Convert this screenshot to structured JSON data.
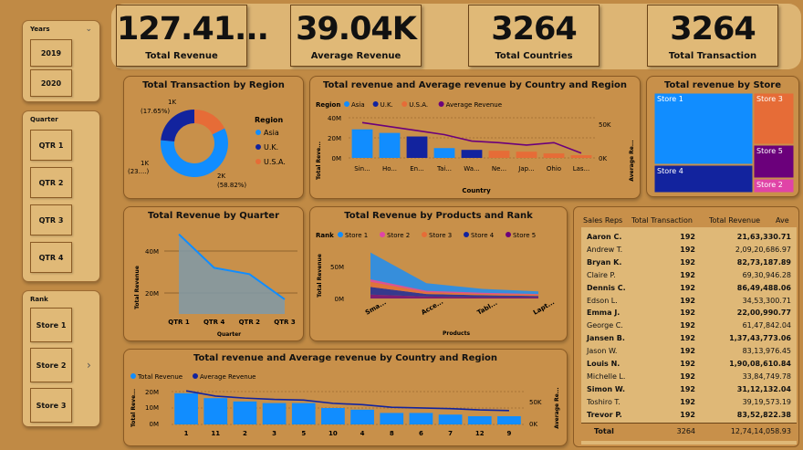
{
  "slicers": {
    "years": {
      "title": "Years",
      "items": [
        "2019",
        "2020"
      ]
    },
    "quarter": {
      "title": "Quarter",
      "items": [
        "QTR 1",
        "QTR 2",
        "QTR 3",
        "QTR 4"
      ]
    },
    "rank": {
      "title": "Rank",
      "items": [
        "Store 1",
        "Store 2",
        "Store 3"
      ]
    }
  },
  "kpis": [
    {
      "value": "127.41...",
      "label": "Total Revenue"
    },
    {
      "value": "39.04K",
      "label": "Average Revenue"
    },
    {
      "value": "3264",
      "label": "Total Countries"
    },
    {
      "value": "3264",
      "label": "Total Transaction"
    }
  ],
  "donut": {
    "title": "Total Transaction by Region",
    "legend_title": "Region",
    "labels": {
      "top": "1K",
      "top_pct": "(17.65%)",
      "left": "1K",
      "left_pct": "(23....)",
      "right": "2K",
      "right_pct": "(58.82%)"
    }
  },
  "combo1": {
    "title": "Total revenue and Average revenue by Country and Region",
    "legend_region": "Region",
    "legend_items": [
      "Asia",
      "U.K.",
      "U.S.A.",
      "Average Revenue"
    ],
    "y_left_title": "Total Reve...",
    "y_right_title": "Average Re...",
    "x_title": "Country",
    "y_left_ticks": [
      "40M",
      "20M",
      "0M"
    ],
    "y_right_ticks": [
      "50K",
      "0K"
    ]
  },
  "treemap": {
    "title": "Total revenue by Store",
    "labels": [
      "Store 1",
      "Store 3",
      "Store 4",
      "Store 5",
      "Store 2"
    ]
  },
  "area": {
    "title": "Total Revenue by Quarter",
    "y_title": "Total Revenue",
    "x_title": "Quarter",
    "y_ticks": [
      "40M",
      "20M"
    ]
  },
  "stream": {
    "title": "Total Revenue by Products and Rank",
    "legend_rank": "Rank",
    "legend_items": [
      "Store 1",
      "Store 2",
      "Store 3",
      "Store 4",
      "Store 5"
    ],
    "y_title": "Total Revenue",
    "x_title": "Products",
    "y_ticks": [
      "50M",
      "0M"
    ],
    "x_labels": [
      "Sma...",
      "Acce...",
      "Tabl...",
      "Lapt..."
    ]
  },
  "combo2": {
    "title": "Total revenue and Average revenue by Country and Region",
    "legend_items": [
      "Total Revenue",
      "Average Revenue"
    ],
    "y_left_title": "Total Reve...",
    "y_right_title": "Average Re...",
    "y_left_ticks": [
      "20M",
      "10M",
      "0M"
    ],
    "y_right_ticks": [
      "50K",
      "0K"
    ]
  },
  "table": {
    "headers": [
      "Sales Reps",
      "Total Transaction",
      "Total Revenue",
      "Ave"
    ],
    "rows": [
      {
        "name": "Aaron C.",
        "tx": "192",
        "rev": "21,63,330.71"
      },
      {
        "name": "Andrew T.",
        "tx": "192",
        "rev": "2,09,20,686.97"
      },
      {
        "name": "Bryan K.",
        "tx": "192",
        "rev": "82,73,187.89"
      },
      {
        "name": "Claire P.",
        "tx": "192",
        "rev": "69,30,946.28"
      },
      {
        "name": "Dennis C.",
        "tx": "192",
        "rev": "86,49,488.06"
      },
      {
        "name": "Edson L.",
        "tx": "192",
        "rev": "34,53,300.71"
      },
      {
        "name": "Emma J.",
        "tx": "192",
        "rev": "22,00,990.77"
      },
      {
        "name": "George C.",
        "tx": "192",
        "rev": "61,47,842.04"
      },
      {
        "name": "Jansen B.",
        "tx": "192",
        "rev": "1,37,43,773.06"
      },
      {
        "name": "Jason W.",
        "tx": "192",
        "rev": "83,13,976.45"
      },
      {
        "name": "Louis N.",
        "tx": "192",
        "rev": "1,90,08,610.84"
      },
      {
        "name": "Michelle L.",
        "tx": "192",
        "rev": "33,84,749.78"
      },
      {
        "name": "Simon W.",
        "tx": "192",
        "rev": "31,12,132.04"
      },
      {
        "name": "Toshiro T.",
        "tx": "192",
        "rev": "39,19,573.19"
      },
      {
        "name": "Trevor P.",
        "tx": "192",
        "rev": "83,52,822.38"
      }
    ],
    "total": {
      "label": "Total",
      "tx": "3264",
      "rev": "12,74,14,058.93"
    }
  },
  "chart_data": [
    {
      "type": "pie",
      "title": "Total Transaction by Region",
      "categories": [
        "Asia",
        "U.K.",
        "U.S.A."
      ],
      "values": [
        58.82,
        23.53,
        17.65
      ],
      "colors": [
        "#118dff",
        "#12239e",
        "#e66c37"
      ],
      "legend": "right"
    },
    {
      "type": "bar",
      "title": "Total revenue and Average revenue by Country and Region",
      "categories": [
        "Sin...",
        "Ho...",
        "En...",
        "Tai...",
        "Wa...",
        "Ne...",
        "Jap...",
        "Ohio",
        "Las..."
      ],
      "series": [
        {
          "name": "Total Revenue",
          "values": [
            32,
            28,
            24,
            11,
            9,
            8,
            7,
            5,
            3
          ]
        },
        {
          "name": "Average Revenue",
          "values": [
            68,
            58,
            48,
            38,
            22,
            18,
            12,
            18,
            -8
          ]
        }
      ],
      "bar_colors": [
        "#118dff",
        "#118dff",
        "#12239e",
        "#118dff",
        "#12239e",
        "#e66c37",
        "#e66c37",
        "#e66c37",
        "#e66c37"
      ],
      "ylim": [
        0,
        45
      ],
      "y2lim": [
        -20,
        80
      ]
    },
    {
      "type": "heatmap",
      "title": "Total revenue by Store",
      "categories": [
        "Store 1",
        "Store 3",
        "Store 4",
        "Store 5",
        "Store 2"
      ],
      "values": [
        47,
        17,
        21,
        11,
        4
      ],
      "colors": [
        "#118dff",
        "#e66c37",
        "#12239e",
        "#6b007b",
        "#e044a7"
      ]
    },
    {
      "type": "area",
      "title": "Total Revenue by Quarter",
      "categories": [
        "QTR 1",
        "QTR 4",
        "QTR 2",
        "QTR 3"
      ],
      "values": [
        48,
        32,
        29,
        17
      ],
      "ylim": [
        10,
        50
      ]
    },
    {
      "type": "area",
      "title": "Total Revenue by Products and Rank",
      "categories": [
        "Sma...",
        "Acce...",
        "Tabl...",
        "Lapt..."
      ],
      "series": [
        {
          "name": "Store 1",
          "values": [
            42,
            12,
            6,
            4
          ]
        },
        {
          "name": "Store 2",
          "values": [
            4,
            2,
            2,
            1
          ]
        },
        {
          "name": "Store 3",
          "values": [
            8,
            3,
            2,
            2
          ]
        },
        {
          "name": "Store 4",
          "values": [
            12,
            4,
            3,
            2
          ]
        },
        {
          "name": "Store 5",
          "values": [
            6,
            3,
            2,
            2
          ]
        }
      ],
      "colors": [
        "#118dff",
        "#e044a7",
        "#e66c37",
        "#12239e",
        "#6b007b"
      ],
      "ylim": [
        0,
        80
      ]
    },
    {
      "type": "bar",
      "title": "Total revenue and Average revenue by Country and Region",
      "categories": [
        "1",
        "11",
        "2",
        "3",
        "5",
        "10",
        "4",
        "8",
        "6",
        "7",
        "12",
        "9"
      ],
      "series": [
        {
          "name": "Total Revenue",
          "values": [
            19,
            16,
            14,
            13,
            13,
            10,
            9,
            7,
            7,
            6,
            5,
            5
          ]
        },
        {
          "name": "Average Revenue",
          "values": [
            80,
            64,
            58,
            54,
            52,
            42,
            38,
            30,
            28,
            26,
            22,
            20
          ]
        }
      ],
      "ylim": [
        0,
        22
      ],
      "y2lim": [
        0,
        100
      ]
    }
  ]
}
